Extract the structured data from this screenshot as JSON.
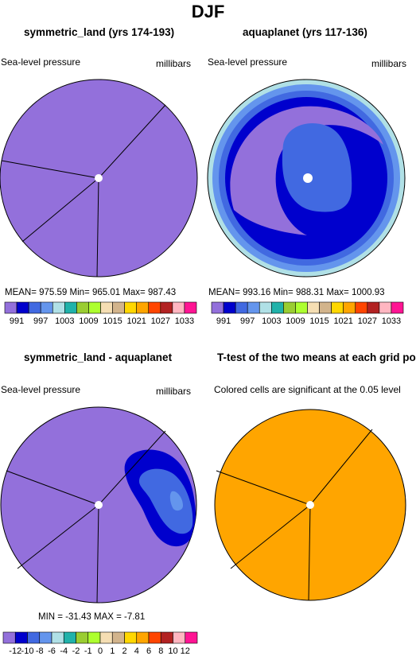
{
  "figure_title": "DJF",
  "panels": [
    {
      "title": "symmetric_land (yrs 174-193)",
      "left_label": "Sea-level pressure",
      "right_label": "millibars",
      "stats": "MEAN= 975.59   Min= 965.01   Max= 987.43"
    },
    {
      "title": "aquaplanet (yrs 117-136)",
      "left_label": "Sea-level pressure",
      "right_label": "millibars",
      "stats": "MEAN= 993.16   Min= 988.31   Max= 1000.93"
    },
    {
      "title": "symmetric_land - aquaplanet",
      "left_label": "Sea-level pressure",
      "right_label": "millibars",
      "stats": "MIN =  -31.43  MAX =   -7.81"
    },
    {
      "title": "T-test of the two means at each grid point",
      "left_label": "Colored cells are significant at the 0.05 level",
      "right_label": "",
      "stats": ""
    }
  ],
  "colorbars": {
    "absolute": {
      "colors": [
        "#9370db",
        "#0000cd",
        "#4169e1",
        "#6495ed",
        "#b0e0e6",
        "#20b2aa",
        "#9acd32",
        "#adff2f",
        "#f5deb3",
        "#d2b48c",
        "#ffd700",
        "#ffa500",
        "#ff4500",
        "#b22222",
        "#ffb6c1",
        "#ff1493"
      ],
      "labels": [
        "991",
        "997",
        "1003",
        "1009",
        "1015",
        "1021",
        "1027",
        "1033"
      ]
    },
    "difference": {
      "colors": [
        "#9370db",
        "#0000cd",
        "#4169e1",
        "#6495ed",
        "#b0e0e6",
        "#20b2aa",
        "#9acd32",
        "#adff2f",
        "#f5deb3",
        "#d2b48c",
        "#ffd700",
        "#ffa500",
        "#ff4500",
        "#b22222",
        "#ffb6c1",
        "#ff1493"
      ],
      "labels": [
        "-12",
        "-10",
        "-8",
        "-6",
        "-4",
        "-2",
        "-1",
        "0",
        "1",
        "2",
        "4",
        "6",
        "8",
        "10",
        "12"
      ]
    }
  },
  "chart_data": [
    {
      "type": "heatmap",
      "title": "symmetric_land (yrs 174-193)",
      "projection": "polar",
      "variable": "Sea-level pressure",
      "units": "millibars",
      "mean": 975.59,
      "min": 965.01,
      "max": 987.43,
      "dominant_color": "#9370db"
    },
    {
      "type": "heatmap",
      "title": "aquaplanet (yrs 117-136)",
      "projection": "polar",
      "variable": "Sea-level pressure",
      "units": "millibars",
      "mean": 993.16,
      "min": 988.31,
      "max": 1000.93,
      "colors": [
        "#9370db",
        "#0000cd",
        "#4169e1",
        "#6495ed",
        "#b0e0e6"
      ]
    },
    {
      "type": "heatmap",
      "title": "symmetric_land - aquaplanet",
      "projection": "polar",
      "variable": "Sea-level pressure",
      "units": "millibars",
      "min": -31.43,
      "max": -7.81,
      "colors": [
        "#9370db",
        "#0000cd",
        "#4169e1",
        "#6495ed"
      ]
    },
    {
      "type": "heatmap",
      "title": "T-test of the two means at each grid point",
      "projection": "polar",
      "dominant_color": "#ffa500"
    }
  ]
}
